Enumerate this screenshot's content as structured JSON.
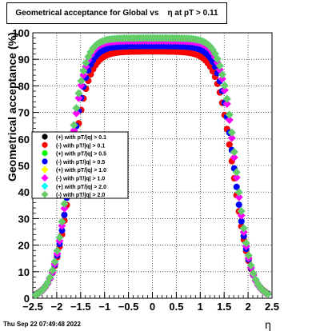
{
  "chart_data": {
    "type": "scatter",
    "title": "Geometrical acceptance for Global vs    η at pT > 0.11",
    "xlabel": "η",
    "ylabel": "Geometrical acceptance (%)",
    "xlim": [
      -2.5,
      2.5
    ],
    "ylim": [
      0,
      100
    ],
    "xticks": [
      -2.5,
      -2,
      -1.5,
      -1,
      -0.5,
      0,
      0.5,
      1,
      1.5,
      2,
      2.5
    ],
    "xtick_labels": [
      "−2.5",
      "−2",
      "−1.5",
      "−1",
      "−0.5",
      "0",
      "0.5",
      "1",
      "1.5",
      "2",
      "2.5"
    ],
    "yticks": [
      0,
      10,
      20,
      30,
      40,
      50,
      60,
      70,
      80,
      90,
      100
    ],
    "ytick_labels": [
      "0",
      "10",
      "20",
      "30",
      "40",
      "50",
      "60",
      "70",
      "80",
      "90",
      "100"
    ],
    "grid": true,
    "legend_position": "left-middle",
    "series": [
      {
        "name": "(+) with pT/|q| > 0.1",
        "color": "#000000",
        "marker": "circle",
        "plateau": 93,
        "x0": 1.7,
        "w": 0.18
      },
      {
        "name": "(-) with pT/|q| > 0.1",
        "color": "#ff0000",
        "marker": "circle",
        "plateau": 93,
        "x0": 1.7,
        "w": 0.18
      },
      {
        "name": "(+) with pT/|q| > 0.5",
        "color": "#00ff00",
        "marker": "circle",
        "plateau": 95,
        "x0": 1.72,
        "w": 0.17
      },
      {
        "name": "(-) with pT/|q| > 0.5",
        "color": "#0000ff",
        "marker": "circle",
        "plateau": 95,
        "x0": 1.72,
        "w": 0.17
      },
      {
        "name": "(+) with pT/|q| > 1.0",
        "color": "#ffff00",
        "marker": "diamond",
        "plateau": 97,
        "x0": 1.74,
        "w": 0.16
      },
      {
        "name": "(-) with pT/|q| > 1.0",
        "color": "#ff00ff",
        "marker": "diamond",
        "plateau": 97,
        "x0": 1.74,
        "w": 0.16
      },
      {
        "name": "(+) with pT/|q| > 2.0",
        "color": "#00ffff",
        "marker": "diamond",
        "plateau": 98,
        "x0": 1.75,
        "w": 0.16
      },
      {
        "name": "(-) with pT/|q| > 2.0",
        "color": "#66cc66",
        "marker": "diamond",
        "plateau": 98,
        "x0": 1.75,
        "w": 0.16
      }
    ]
  },
  "footer": {
    "timestamp": "Thu Sep 22 07:49:48 2022"
  }
}
